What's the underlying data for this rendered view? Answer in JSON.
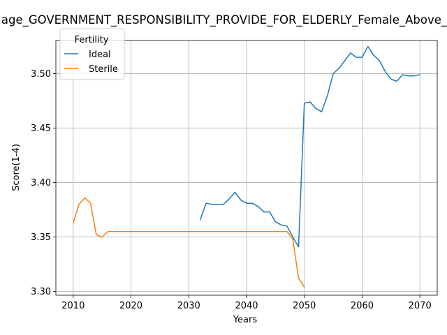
{
  "chart_data": {
    "type": "line",
    "title": "age_GOVERNMENT_RESPONSIBILITY_PROVIDE_FOR_ELDERLY_Female_Above_",
    "xlabel": "Years",
    "ylabel": "Score(1-4)",
    "xlim": [
      2007,
      2073
    ],
    "ylim": [
      3.2965,
      3.5305
    ],
    "xticks": [
      2010,
      2020,
      2030,
      2040,
      2050,
      2060,
      2070
    ],
    "yticks": [
      "3.30",
      "3.35",
      "3.40",
      "3.45",
      "3.50"
    ],
    "ytick_values": [
      3.3,
      3.35,
      3.4,
      3.45,
      3.5
    ],
    "grid": true,
    "legend": {
      "title": "Fertility",
      "placement": "upper-left"
    },
    "series": [
      {
        "name": "Ideal",
        "color": "#1f77b4",
        "x": [
          2032,
          2033,
          2034,
          2035,
          2036,
          2037,
          2038,
          2039,
          2040,
          2041,
          2042,
          2043,
          2044,
          2045,
          2046,
          2047,
          2048,
          2049,
          2050,
          2051,
          2052,
          2053,
          2054,
          2055,
          2056,
          2057,
          2058,
          2059,
          2060,
          2061,
          2062,
          2063,
          2064,
          2065,
          2066,
          2067,
          2068,
          2069,
          2070
        ],
        "y": [
          3.366,
          3.381,
          3.38,
          3.38,
          3.38,
          3.385,
          3.391,
          3.384,
          3.381,
          3.381,
          3.378,
          3.373,
          3.373,
          3.364,
          3.361,
          3.36,
          3.35,
          3.341,
          3.473,
          3.474,
          3.468,
          3.465,
          3.48,
          3.5,
          3.505,
          3.512,
          3.519,
          3.515,
          3.515,
          3.525,
          3.517,
          3.512,
          3.502,
          3.495,
          3.493,
          3.499,
          3.498,
          3.498,
          3.499
        ]
      },
      {
        "name": "Sterile",
        "color": "#ff7f0e",
        "x": [
          2010,
          2011,
          2012,
          2013,
          2014,
          2015,
          2016,
          2017,
          2018,
          2019,
          2020,
          2021,
          2022,
          2023,
          2024,
          2025,
          2026,
          2027,
          2028,
          2029,
          2030,
          2031,
          2032,
          2033,
          2034,
          2035,
          2036,
          2037,
          2038,
          2039,
          2040,
          2041,
          2042,
          2043,
          2044,
          2045,
          2046,
          2047,
          2048,
          2049,
          2050
        ],
        "y": [
          3.363,
          3.38,
          3.386,
          3.381,
          3.352,
          3.35,
          3.355,
          3.355,
          3.355,
          3.355,
          3.355,
          3.355,
          3.355,
          3.355,
          3.355,
          3.355,
          3.355,
          3.355,
          3.355,
          3.355,
          3.355,
          3.355,
          3.355,
          3.355,
          3.355,
          3.355,
          3.355,
          3.355,
          3.355,
          3.355,
          3.355,
          3.355,
          3.355,
          3.355,
          3.355,
          3.355,
          3.355,
          3.355,
          3.348,
          3.312,
          3.304
        ]
      }
    ]
  }
}
